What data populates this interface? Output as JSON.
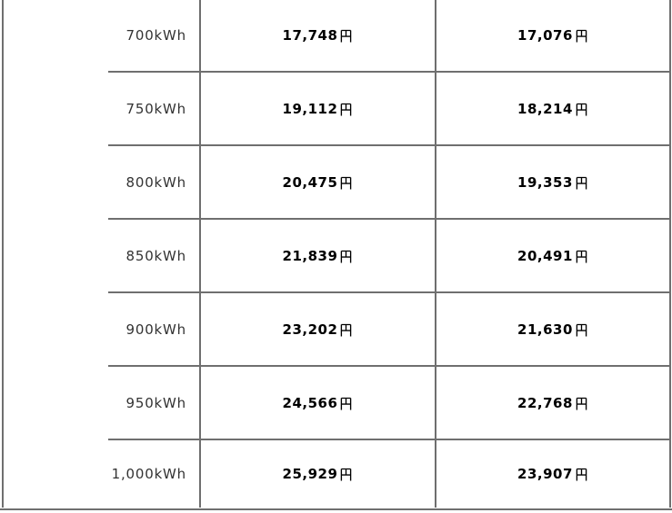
{
  "page": {
    "background": "#ffffff"
  },
  "colors": {
    "border": "#6f6f6f",
    "usage_text": "#333333",
    "price_text": "#000000"
  },
  "chart_data": {
    "type": "table",
    "unit_suffix": "kWh",
    "currency_suffix": "円",
    "rows": [
      {
        "usage": "700kWh",
        "price_1": "17,748円",
        "price_2": "17,076円"
      },
      {
        "usage": "750kWh",
        "price_1": "19,112円",
        "price_2": "18,214円"
      },
      {
        "usage": "800kWh",
        "price_1": "20,475円",
        "price_2": "19,353円"
      },
      {
        "usage": "850kWh",
        "price_1": "21,839円",
        "price_2": "20,491円"
      },
      {
        "usage": "900kWh",
        "price_1": "23,202円",
        "price_2": "21,630円"
      },
      {
        "usage": "950kWh",
        "price_1": "24,566円",
        "price_2": "22,768円"
      },
      {
        "usage": "1,000kWh",
        "price_1": "25,929円",
        "price_2": "23,907円"
      }
    ]
  }
}
